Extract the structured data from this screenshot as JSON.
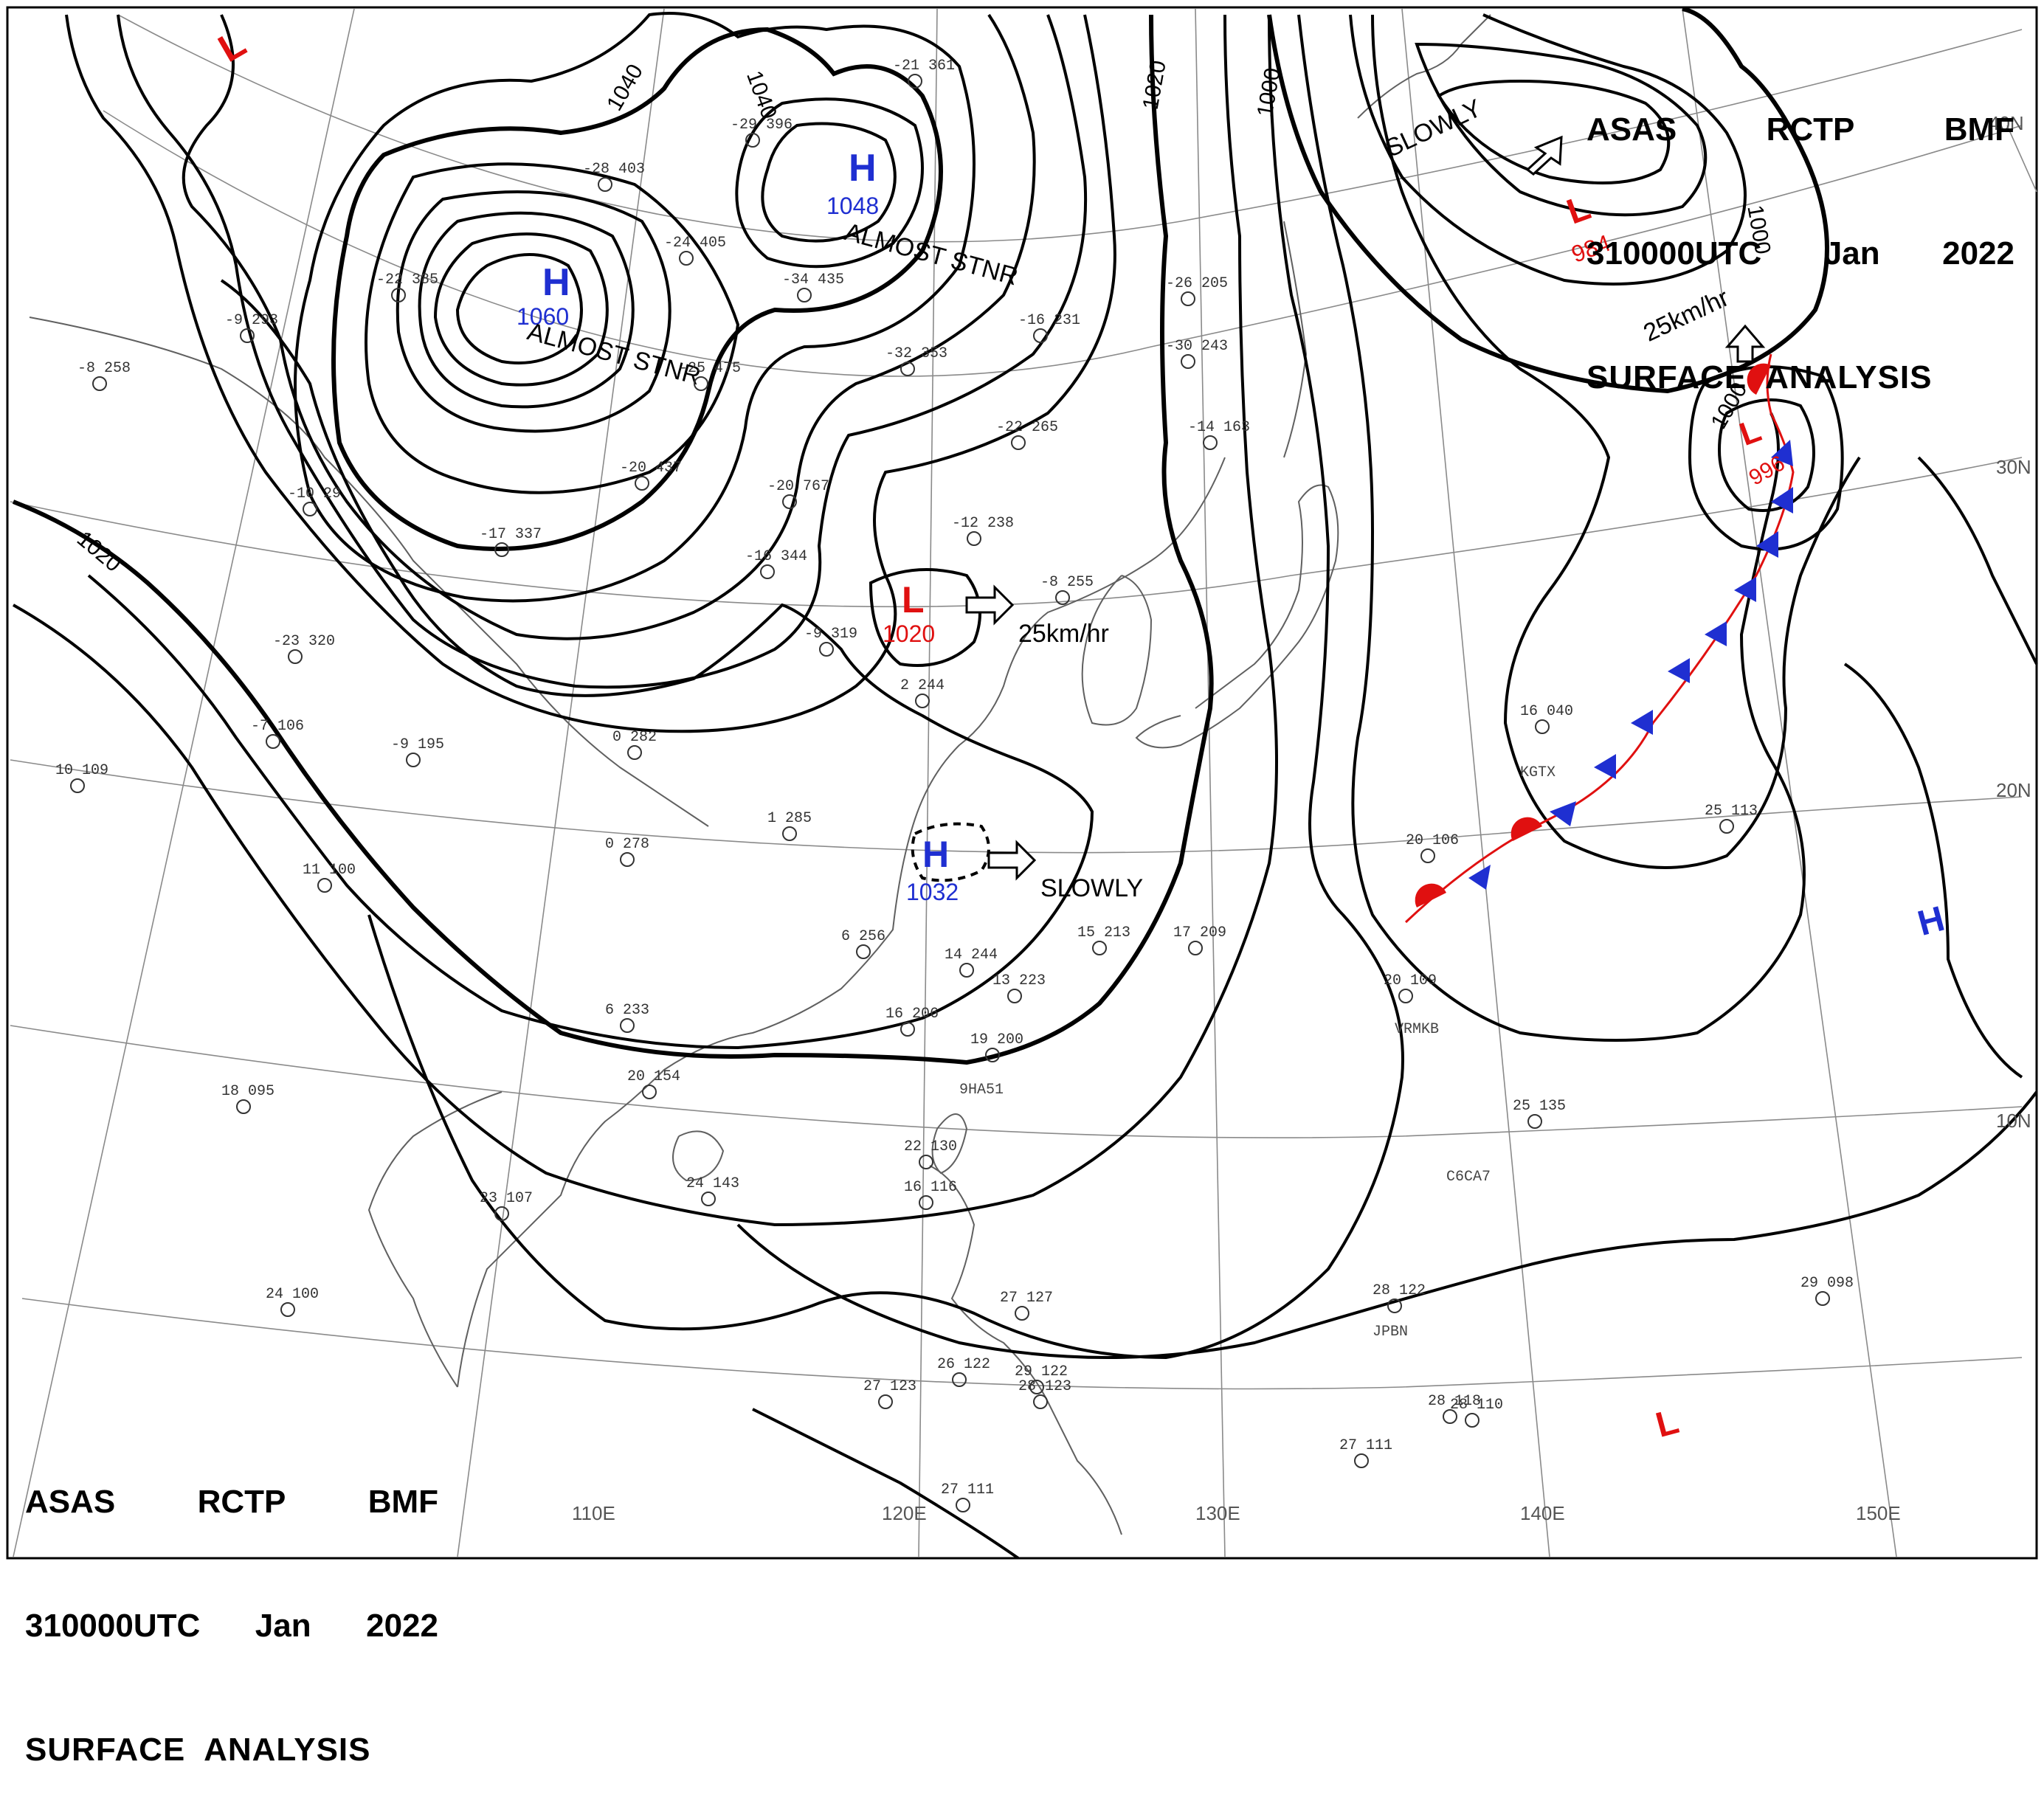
{
  "header": {
    "lines": [
      "ASAS  RCTP  BMF",
      "310000UTC  Jan  2022",
      "SURFACE  ANALYSIS"
    ],
    "row1": [
      "ASAS",
      "RCTP",
      "BMF"
    ],
    "row2": [
      "310000UTC",
      "Jan",
      "2022"
    ],
    "row3": "SURFACE  ANALYSIS"
  },
  "colors": {
    "high": "#1f2fd1",
    "low": "#e01010",
    "isobar": "#000000",
    "grid": "#808080",
    "coast": "#555555",
    "warm_front": "#e01010",
    "cold_front": "#1f2fd1"
  },
  "grid_labels": {
    "longitudes": [
      "110E",
      "120E",
      "130E",
      "140E",
      "150E"
    ],
    "latitudes": [
      "40N",
      "30N",
      "20N",
      "10N"
    ]
  },
  "pressure_centers": [
    {
      "type": "H",
      "value": "1060",
      "note": "ALMOST STNR"
    },
    {
      "type": "H",
      "value": "1048",
      "note": "ALMOST STNR"
    },
    {
      "type": "L",
      "value": ""
    },
    {
      "type": "L",
      "value": "1020",
      "motion": "25km/hr"
    },
    {
      "type": "H",
      "value": "1032",
      "motion": "SLOWLY"
    },
    {
      "type": "L",
      "value": "984",
      "note": "SLOWLY",
      "motion": "25km/hr"
    },
    {
      "type": "L",
      "value": "996"
    },
    {
      "type": "H",
      "value": ""
    },
    {
      "type": "L",
      "value": ""
    }
  ],
  "isobar_labels": [
    "1040",
    "1040",
    "1020",
    "1000",
    "1000",
    "1020",
    "1000"
  ],
  "motion_labels": [
    "SLOWLY",
    "25km/hr",
    "25km/hr",
    "SLOWLY",
    "ALMOST STNR",
    "ALMOST STNR"
  ],
  "station_ids": [
    "KGTX",
    "VRMKB",
    "9HA51",
    "C6CA7",
    "JPBN"
  ],
  "station_numbers": [
    "-21 361",
    "-29 396",
    "-28 403",
    "-24 405",
    "-34 435",
    "-22 385",
    "-9 293",
    "-8 258",
    "-25 475",
    "-20 437",
    "-16 231",
    "-32 353",
    "-22 265",
    "-30 243",
    "-26 205",
    "-14 163",
    "-12 238",
    "-8 255",
    "-9 319",
    "-20 767",
    "-16 344",
    "-17 337",
    "-23 320",
    "-10 29",
    "-7 106",
    "-9 195",
    "10 109",
    "11 100",
    "0 278",
    "1 285",
    "0 282",
    "2 244",
    "6 256",
    "6 233",
    "14 244",
    "16 206",
    "19 200",
    "15 213",
    "17 209",
    "13 223",
    "20 154",
    "18 095",
    "24 143",
    "23 107",
    "24 100",
    "22 130",
    "16 116",
    "27 123",
    "26 122",
    "29 122",
    "27 127",
    "28 123",
    "27 111",
    "27 111",
    "28 118",
    "28 122",
    "29 098",
    "25 113",
    "25 135",
    "20 109",
    "20 106",
    "16 040",
    "28 110"
  ]
}
